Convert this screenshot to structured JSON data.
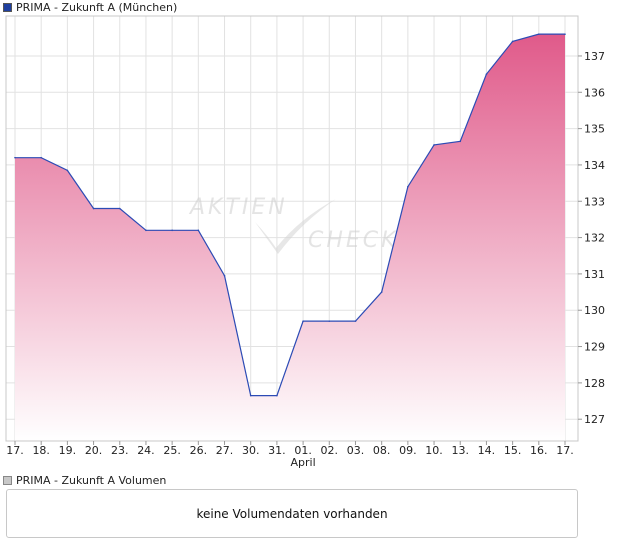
{
  "legend": {
    "price_label": "PRIMA - Zukunft A (München)",
    "price_swatch_color": "#1f3f9f",
    "volume_label": "PRIMA - Zukunft A Volumen",
    "volume_swatch_color": "#c8c8c8"
  },
  "volume_panel": {
    "message": "keine Volumendaten vorhanden"
  },
  "watermark": {
    "word1": "AKTIEN",
    "word2": "CHECK"
  },
  "chart_data": {
    "type": "area",
    "title": "PRIMA - Zukunft A (München)",
    "categories": [
      "17.",
      "18.",
      "19.",
      "20.",
      "23.",
      "24.",
      "25.",
      "26.",
      "27.",
      "30.",
      "31.",
      "01.",
      "02.",
      "03.",
      "08.",
      "09.",
      "10.",
      "13.",
      "14.",
      "15.",
      "16.",
      "17."
    ],
    "month_label": {
      "category_index": 11,
      "text": "April"
    },
    "values": [
      134.2,
      134.2,
      133.85,
      132.8,
      132.8,
      132.2,
      132.2,
      132.2,
      130.95,
      127.65,
      127.65,
      129.7,
      129.7,
      129.7,
      130.5,
      133.4,
      134.55,
      134.65,
      136.5,
      137.4,
      137.6,
      137.6
    ],
    "yticks": [
      127,
      128,
      129,
      130,
      131,
      132,
      133,
      134,
      135,
      136,
      137
    ],
    "ylim": [
      126.4,
      138.1
    ],
    "grid": true,
    "line_color": "#2c4bb5",
    "fill_top_color": "#e05a8a",
    "fill_bottom_color": "#ffffff"
  }
}
